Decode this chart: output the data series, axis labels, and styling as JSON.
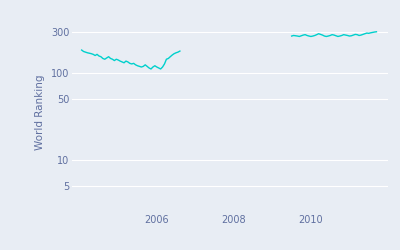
{
  "ylabel": "World Ranking",
  "background_color": "#e8edf4",
  "line_color": "#00d0cc",
  "line_width": 1.0,
  "yticks": [
    5,
    10,
    50,
    100,
    300
  ],
  "ytick_labels": [
    "5",
    "10",
    "50",
    "100",
    "300"
  ],
  "ylim_log": [
    2.5,
    500
  ],
  "xlim": [
    2003.8,
    2012.0
  ],
  "segment1_x": [
    2004.05,
    2004.1,
    2004.15,
    2004.2,
    2004.25,
    2004.3,
    2004.35,
    2004.4,
    2004.45,
    2004.5,
    2004.55,
    2004.6,
    2004.65,
    2004.7,
    2004.75,
    2004.8,
    2004.85,
    2004.9,
    2004.95,
    2005.0,
    2005.05,
    2005.1,
    2005.15,
    2005.2,
    2005.25,
    2005.3,
    2005.35,
    2005.4,
    2005.45,
    2005.5,
    2005.55,
    2005.6,
    2005.65,
    2005.7,
    2005.75,
    2005.8,
    2005.85,
    2005.9,
    2005.95,
    2006.0,
    2006.05,
    2006.1,
    2006.15,
    2006.2,
    2006.25,
    2006.3,
    2006.35,
    2006.4,
    2006.45,
    2006.5,
    2006.55,
    2006.6
  ],
  "segment1_y": [
    185,
    178,
    175,
    172,
    170,
    168,
    165,
    160,
    165,
    158,
    155,
    148,
    145,
    150,
    155,
    148,
    145,
    140,
    145,
    142,
    138,
    135,
    132,
    138,
    135,
    130,
    128,
    130,
    125,
    122,
    120,
    118,
    120,
    125,
    120,
    115,
    112,
    118,
    122,
    118,
    115,
    112,
    118,
    128,
    145,
    148,
    155,
    162,
    168,
    172,
    175,
    180
  ],
  "segment2_x": [
    2009.5,
    2009.55,
    2009.6,
    2009.65,
    2009.7,
    2009.75,
    2009.8,
    2009.85,
    2009.9,
    2009.95,
    2010.0,
    2010.05,
    2010.1,
    2010.15,
    2010.2,
    2010.25,
    2010.3,
    2010.35,
    2010.4,
    2010.45,
    2010.5,
    2010.55,
    2010.6,
    2010.65,
    2010.7,
    2010.75,
    2010.8,
    2010.85,
    2010.9,
    2010.95,
    2011.0,
    2011.05,
    2011.1,
    2011.15,
    2011.2,
    2011.25,
    2011.3,
    2011.35,
    2011.4,
    2011.45,
    2011.5,
    2011.55,
    2011.6,
    2011.65,
    2011.7
  ],
  "segment2_y": [
    268,
    272,
    270,
    268,
    265,
    270,
    275,
    278,
    272,
    268,
    265,
    268,
    272,
    278,
    285,
    280,
    275,
    268,
    265,
    268,
    272,
    278,
    275,
    270,
    265,
    268,
    272,
    278,
    275,
    272,
    268,
    270,
    275,
    280,
    278,
    272,
    275,
    280,
    285,
    290,
    288,
    292,
    295,
    298,
    300
  ],
  "grid_color": "#ffffff",
  "tick_color": "#6070a0",
  "label_color": "#6070a0"
}
